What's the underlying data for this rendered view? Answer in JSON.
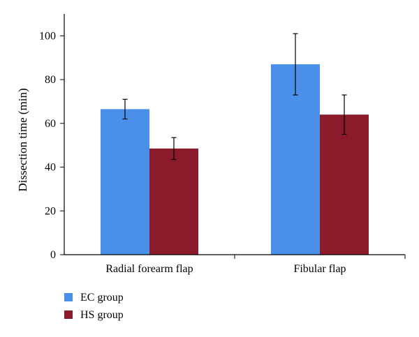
{
  "chart_data": {
    "type": "bar",
    "ylabel": "Dissection time (min)",
    "ylim": [
      0,
      110
    ],
    "yticks": [
      0,
      20,
      40,
      60,
      80,
      100
    ],
    "categories": [
      "Radial forearm flap",
      "Fibular flap"
    ],
    "series": [
      {
        "name": "EC group",
        "color": "#4a90e8",
        "values": [
          66.5,
          87
        ],
        "error": [
          4.5,
          14
        ]
      },
      {
        "name": "HS group",
        "color": "#8b1a2b",
        "values": [
          48.5,
          64
        ],
        "error": [
          5,
          9
        ]
      }
    ],
    "grid": false,
    "legend_position": "bottom-left"
  }
}
